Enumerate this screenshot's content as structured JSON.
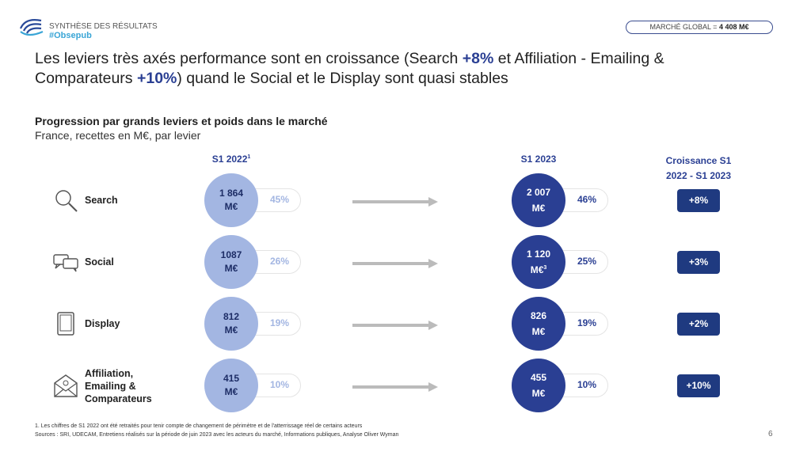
{
  "header": {
    "section": "SYNTHÈSE DES RÉSULTATS",
    "hashtag": "#Obsepub",
    "market_label": "MARCHÉ GLOBAL = ",
    "market_value": "4 408 M€"
  },
  "title": {
    "p1": "Les leviers très axés performance sont en croissance (Search ",
    "h1": "+8%",
    "p2": " et Affiliation - Emailing & Comparateurs ",
    "h2": "+10%",
    "p3": ") quand le Social et le Display sont quasi stables"
  },
  "subtitle": "Progression par grands leviers et poids dans le marché",
  "subtitle2": "France, recettes en M€, par levier",
  "colors": {
    "light": "#a3b6e2",
    "dark": "#2a3f93",
    "badge": "#1f3a80"
  },
  "chart_data": {
    "type": "table",
    "columns": {
      "s1_2022": "S1 2022",
      "s1_2022_sup": "1",
      "s1_2023": "S1 2023",
      "growth_l1": "Croissance S1",
      "growth_l2": "2022 - S1 2023"
    },
    "rows": [
      {
        "lever": "Search",
        "icon": "search-icon",
        "v2022": "1 864",
        "u2022": "M€",
        "p2022": "45%",
        "v2023": "2 007",
        "u2023": "M€",
        "sup2023": "",
        "p2023": "46%",
        "growth": "+8%"
      },
      {
        "lever": "Social",
        "icon": "chat-icon",
        "v2022": "1087",
        "u2022": "M€",
        "p2022": "26%",
        "v2023": "1 120",
        "u2023": "M€",
        "sup2023": "3",
        "p2023": "25%",
        "growth": "+3%"
      },
      {
        "lever": "Display",
        "icon": "tablet-icon",
        "v2022": "812",
        "u2022": "M€",
        "p2022": "19%",
        "v2023": "826",
        "u2023": "M€",
        "sup2023": "",
        "p2023": "19%",
        "growth": "+2%"
      },
      {
        "lever": "Affiliation, Emailing & Comparateurs",
        "icon": "email-icon",
        "v2022": "415",
        "u2022": "M€",
        "p2022": "10%",
        "v2023": "455",
        "u2023": "M€",
        "sup2023": "",
        "p2023": "10%",
        "growth": "+10%"
      }
    ]
  },
  "footer": {
    "note": "1. Les chiffres de S1 2022 ont été retraités pour tenir compte de changement de périmètre et de l'atterrissage réel de certains acteurs",
    "sources": "Sources : SRI, UDECAM, Entretiens réalisés sur la période de juin 2023 avec les acteurs du marché, Informations publiques, Analyse Oliver Wyman",
    "page": "6"
  }
}
